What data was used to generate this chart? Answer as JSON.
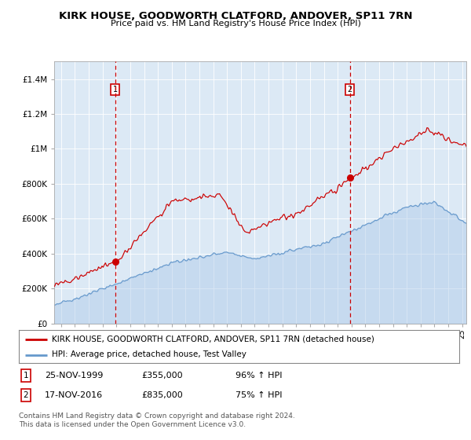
{
  "title": "KIRK HOUSE, GOODWORTH CLATFORD, ANDOVER, SP11 7RN",
  "subtitle": "Price paid vs. HM Land Registry's House Price Index (HPI)",
  "plot_bg_color": "#dce9f5",
  "red_line_color": "#cc0000",
  "blue_line_color": "#6699cc",
  "blue_fill_color": "#adc8e8",
  "ylim": [
    0,
    1500000
  ],
  "yticks": [
    0,
    200000,
    400000,
    600000,
    800000,
    1000000,
    1200000,
    1400000
  ],
  "ytick_labels": [
    "£0",
    "£200K",
    "£400K",
    "£600K",
    "£800K",
    "£1M",
    "£1.2M",
    "£1.4M"
  ],
  "xlim_start": 1995.5,
  "xlim_end": 2025.3,
  "sale1_x": 1999.9,
  "sale1_y": 355000,
  "sale1_label": "1",
  "sale1_date": "25-NOV-1999",
  "sale1_price": "£355,000",
  "sale1_hpi": "96% ↑ HPI",
  "sale2_x": 2016.88,
  "sale2_y": 835000,
  "sale2_label": "2",
  "sale2_date": "17-NOV-2016",
  "sale2_price": "£835,000",
  "sale2_hpi": "75% ↑ HPI",
  "legend_line1": "KIRK HOUSE, GOODWORTH CLATFORD, ANDOVER, SP11 7RN (detached house)",
  "legend_line2": "HPI: Average price, detached house, Test Valley",
  "footer": "Contains HM Land Registry data © Crown copyright and database right 2024.\nThis data is licensed under the Open Government Licence v3.0."
}
